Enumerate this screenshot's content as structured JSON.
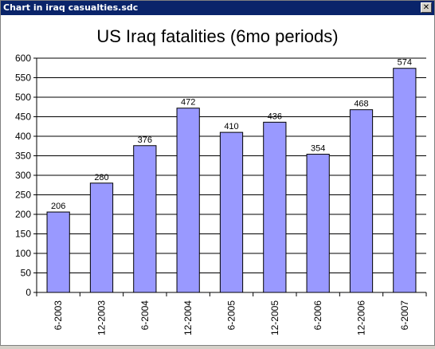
{
  "window": {
    "title": "Chart in iraq casualties.sdc",
    "close_glyph": "✕"
  },
  "chart_data": {
    "type": "bar",
    "title": "US Iraq fatalities (6mo periods)",
    "xlabel": "",
    "ylabel": "",
    "categories": [
      "6-2003",
      "12-2003",
      "6-2004",
      "12-2004",
      "6-2005",
      "12-2005",
      "6-2006",
      "12-2006",
      "6-2007"
    ],
    "values": [
      206,
      280,
      376,
      472,
      410,
      436,
      354,
      468,
      574
    ],
    "ylim": [
      0,
      600
    ],
    "yticks": [
      0,
      50,
      100,
      150,
      200,
      250,
      300,
      350,
      400,
      450,
      500,
      550,
      600
    ],
    "grid": true,
    "bar_color": "#9999ff",
    "data_labels": true
  }
}
